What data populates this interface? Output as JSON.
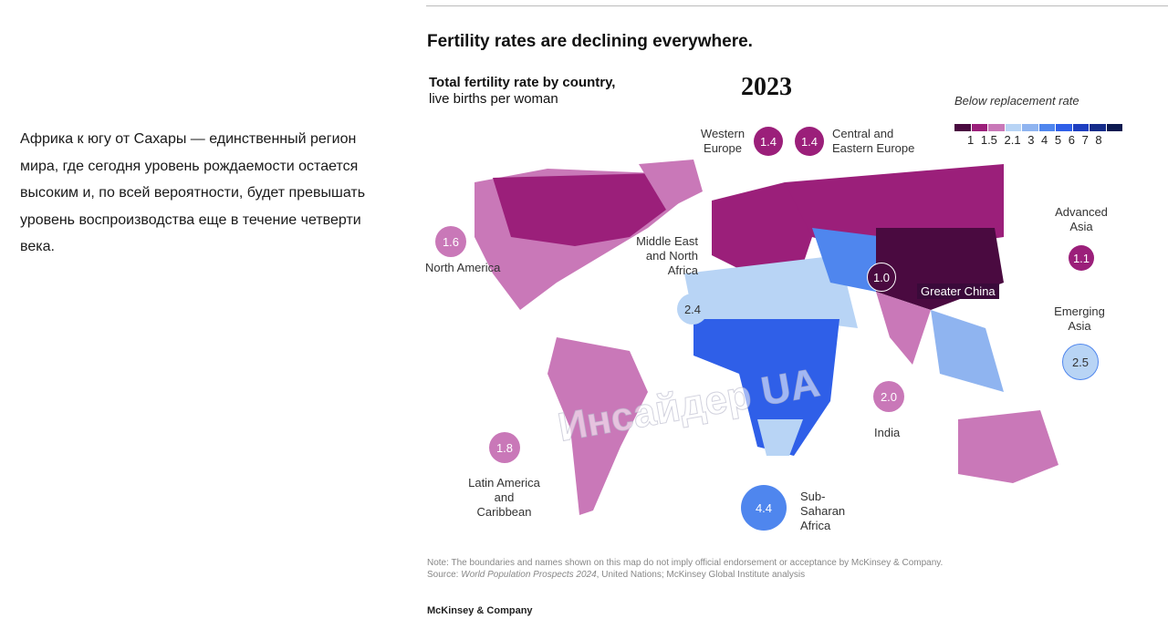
{
  "side_text": "Африка к югу от Сахары — единственный регион мира, где сегодня уровень рождаемости остается высоким и, по всей вероятности, будет превышать уровень воспроизводства еще в течение четверти века.",
  "headline": "Fertility rates are declining everywhere.",
  "subtitle_bold": "Total fertility rate by country,",
  "subtitle": "live births per woman",
  "year": "2023",
  "legend": {
    "title": "Below replacement rate",
    "ticks": "1 1.5 2.1 3 4 5 6 7 8",
    "colors": [
      "#4a0a40",
      "#9b1f7a",
      "#c978b8",
      "#b8d4f5",
      "#8fb4f0",
      "#4f86ee",
      "#2f5fe8",
      "#1e3fc0",
      "#152c8a",
      "#0d1a50"
    ]
  },
  "regions": [
    {
      "name": "North America",
      "value": "1.6"
    },
    {
      "name": "Western Europe",
      "value": "1.4"
    },
    {
      "name": "Central and Eastern Europe",
      "value": "1.4"
    },
    {
      "name": "Middle East and North Africa",
      "value": "2.4"
    },
    {
      "name": "Greater China",
      "value": "1.0"
    },
    {
      "name": "Advanced Asia",
      "value": "1.1"
    },
    {
      "name": "Emerging Asia",
      "value": "2.5"
    },
    {
      "name": "India",
      "value": "2.0"
    },
    {
      "name": "Latin America and Caribbean",
      "value": "1.8"
    },
    {
      "name": "Sub-Saharan Africa",
      "value": "4.4"
    }
  ],
  "note": "Note: The boundaries and names shown on this map do not imply official endorsement or acceptance by McKinsey & Company.",
  "source_prefix": "Source: ",
  "source_italic": "World Population Prospects 2024",
  "source_rest": ", United Nations; McKinsey Global Institute analysis",
  "brand": "McKinsey & Company",
  "watermark": "Инсайдер UA"
}
